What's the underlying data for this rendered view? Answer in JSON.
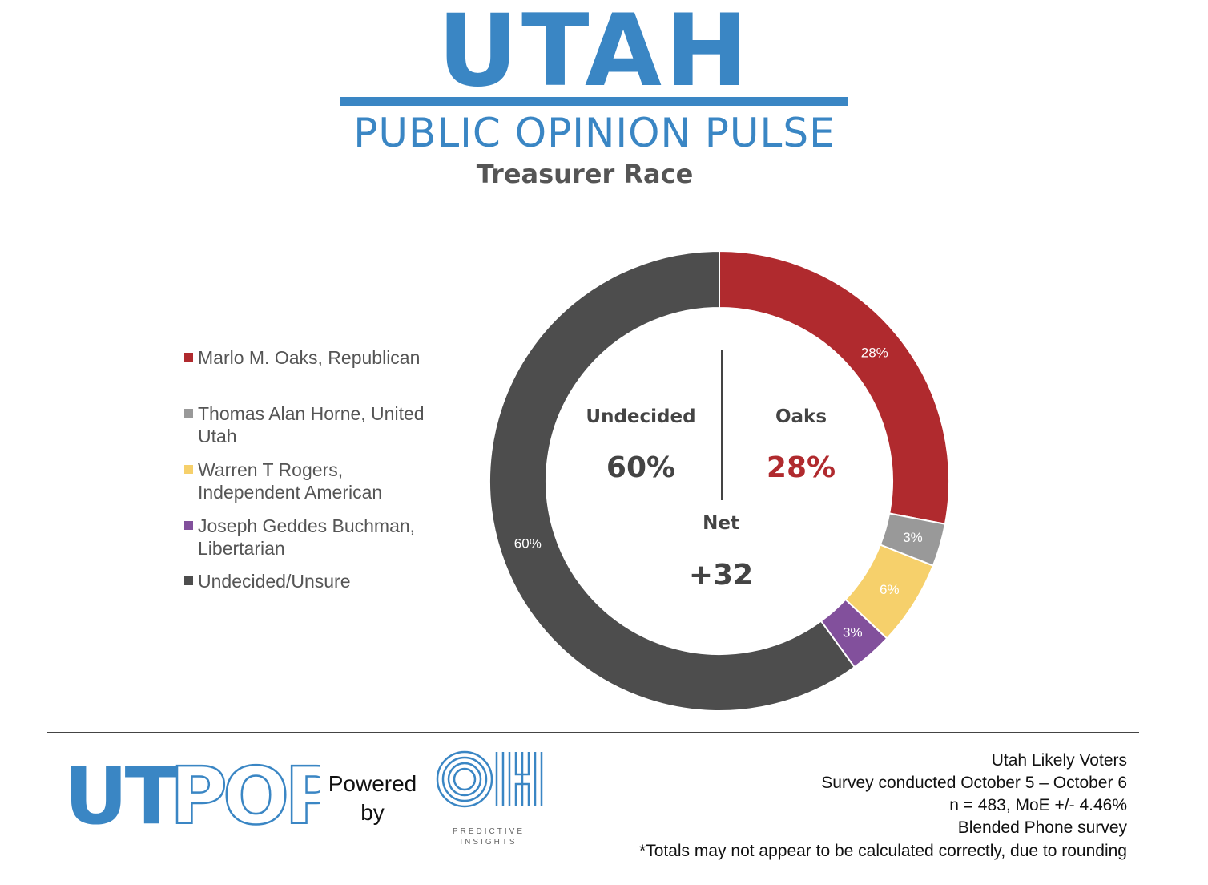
{
  "header": {
    "logo_word": "UTAH",
    "subtitle": "PUBLIC OPINION PULSE",
    "chart_title": "Treasurer Race",
    "brand_color": "#3a86c4"
  },
  "legend": [
    {
      "label_lines": [
        "Marlo M. Oaks, Republican"
      ],
      "color": "#b02a2e"
    },
    {
      "label_lines": [
        "Thomas Alan Horne, United",
        "Utah"
      ],
      "color": "#999999"
    },
    {
      "label_lines": [
        "Warren T Rogers,",
        "Independent American"
      ],
      "color": "#f6d06b"
    },
    {
      "label_lines": [
        "Joseph Geddes Buchman,",
        "Libertarian"
      ],
      "color": "#82509c"
    },
    {
      "label_lines": [
        "Undecided/Unsure"
      ],
      "color": "#4d4d4d"
    }
  ],
  "center": {
    "left_label": "Undecided",
    "left_value": "60%",
    "right_label": "Oaks",
    "right_value": "28%",
    "right_value_color": "#b02a2e",
    "net_label": "Net",
    "net_value": "+32"
  },
  "chart_data": {
    "type": "pie",
    "variant": "donut",
    "title": "Treasurer Race",
    "slices": [
      {
        "name": "Marlo M. Oaks, Republican",
        "value": 28,
        "label": "28%",
        "color": "#b02a2e"
      },
      {
        "name": "Thomas Alan Horne, United Utah",
        "value": 3,
        "label": "3%",
        "color": "#999999"
      },
      {
        "name": "Warren T Rogers, Independent American",
        "value": 6,
        "label": "6%",
        "color": "#f6d06b"
      },
      {
        "name": "Joseph Geddes Buchman, Libertarian",
        "value": 3,
        "label": "3%",
        "color": "#82509c"
      },
      {
        "name": "Undecided/Unsure",
        "value": 60,
        "label": "60%",
        "color": "#4d4d4d"
      }
    ],
    "legend_position": "left"
  },
  "footer": {
    "utpop_dark": "UT",
    "utpop_light": "POP",
    "powered_by": [
      "Powered",
      "by"
    ],
    "oh_caption": [
      "PREDICTIVE",
      "INSIGHTS"
    ],
    "notes": [
      "Utah Likely Voters",
      "Survey conducted October 5 – October 6",
      "n = 483, MoE +/- 4.46%",
      "Blended Phone survey",
      "*Totals may not appear to be calculated correctly, due to rounding"
    ]
  }
}
